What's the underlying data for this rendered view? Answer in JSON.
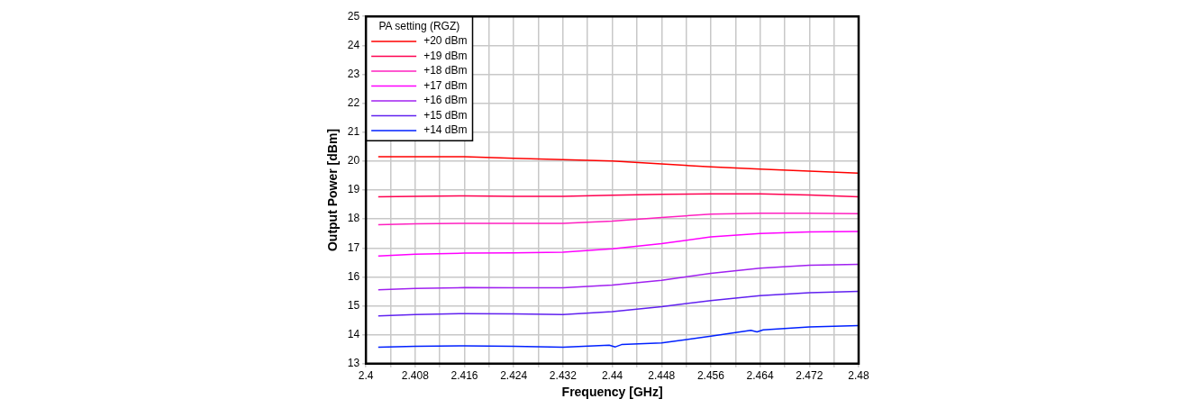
{
  "chart_data": {
    "type": "line",
    "xlabel": "Frequency [GHz]",
    "ylabel": "Output Power [dBm]",
    "legend_title": "PA setting (RGZ)",
    "legend": "top left",
    "grid": true,
    "marker": "none",
    "line_style": "solid",
    "xlim": [
      2.4,
      2.48
    ],
    "ylim": [
      13,
      25
    ],
    "xticks": [
      2.4,
      {
        "value": 2.404,
        "label": null
      },
      2.408,
      {
        "value": 2.412,
        "label": null
      },
      2.416,
      {
        "value": 2.42,
        "label": null
      },
      2.424,
      {
        "value": 2.428,
        "label": null
      },
      2.432,
      {
        "value": 2.436,
        "label": null
      },
      2.44,
      {
        "value": 2.444,
        "label": null
      },
      2.448,
      {
        "value": 2.452,
        "label": null
      },
      2.456,
      {
        "value": 2.46,
        "label": null
      },
      2.464,
      {
        "value": 2.468,
        "label": null
      },
      2.472,
      {
        "value": 2.476,
        "label": null
      },
      2.48
    ],
    "yticks": [
      13,
      14,
      15,
      16,
      17,
      18,
      19,
      20,
      21,
      22,
      23,
      24,
      25
    ],
    "x": [
      2.402,
      2.408,
      2.416,
      2.424,
      2.432,
      2.44,
      2.448,
      2.456,
      2.464,
      2.472,
      2.48
    ],
    "series": [
      {
        "name": "+20 dBm",
        "color": "#ff0000",
        "values": [
          20.15,
          20.15,
          20.15,
          20.1,
          20.05,
          20.0,
          19.9,
          19.8,
          19.72,
          19.65,
          19.58
        ]
      },
      {
        "name": "+19 dBm",
        "color": "#ff0050",
        "values": [
          18.77,
          18.78,
          18.8,
          18.78,
          18.78,
          18.82,
          18.85,
          18.87,
          18.87,
          18.83,
          18.77
        ]
      },
      {
        "name": "+18 dBm",
        "color": "#ff20c0",
        "values": [
          17.8,
          17.83,
          17.85,
          17.85,
          17.85,
          17.93,
          18.05,
          18.17,
          18.2,
          18.2,
          18.18
        ]
      },
      {
        "name": "+17 dBm",
        "color": "#ff00ff",
        "values": [
          16.72,
          16.78,
          16.82,
          16.83,
          16.85,
          16.97,
          17.15,
          17.38,
          17.5,
          17.55,
          17.57
        ]
      },
      {
        "name": "+16 dBm",
        "color": "#a020f0",
        "values": [
          15.55,
          15.6,
          15.63,
          15.62,
          15.62,
          15.72,
          15.88,
          16.12,
          16.3,
          16.4,
          16.43
        ]
      },
      {
        "name": "+15 dBm",
        "color": "#6020f0",
        "values": [
          14.65,
          14.7,
          14.73,
          14.72,
          14.7,
          14.8,
          14.97,
          15.18,
          15.35,
          15.45,
          15.5
        ]
      },
      {
        "name": "+14 dBm",
        "color": "#0020ff",
        "x": [
          2.402,
          2.408,
          2.416,
          2.424,
          2.432,
          2.4395,
          2.4405,
          2.4415,
          2.448,
          2.456,
          2.4625,
          2.4635,
          2.4645,
          2.472,
          2.48
        ],
        "values": [
          13.57,
          13.6,
          13.62,
          13.6,
          13.57,
          13.64,
          13.58,
          13.66,
          13.72,
          13.95,
          14.15,
          14.1,
          14.17,
          14.27,
          14.32
        ]
      }
    ]
  }
}
